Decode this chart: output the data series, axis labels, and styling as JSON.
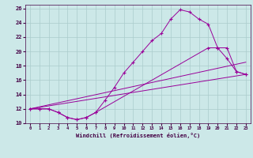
{
  "background_color": "#cce8e8",
  "grid_color": "#aacccc",
  "line_color": "#990099",
  "xlabel": "Windchill (Refroidissement éolien,°C)",
  "xlim": [
    -0.5,
    23.5
  ],
  "ylim": [
    10,
    26.5
  ],
  "xticks": [
    0,
    1,
    2,
    3,
    4,
    5,
    6,
    7,
    8,
    9,
    10,
    11,
    12,
    13,
    14,
    15,
    16,
    17,
    18,
    19,
    20,
    21,
    22,
    23
  ],
  "yticks": [
    10,
    12,
    14,
    16,
    18,
    20,
    22,
    24,
    26
  ],
  "line1_x": [
    0,
    1,
    2,
    3,
    4,
    5,
    6,
    7,
    8,
    9,
    10,
    11,
    12,
    13,
    14,
    15,
    16,
    17,
    18,
    19,
    20,
    21,
    22,
    23
  ],
  "line1_y": [
    12,
    12,
    12,
    11.5,
    10.8,
    10.5,
    10.8,
    11.5,
    13.2,
    15.0,
    17.0,
    18.5,
    20.0,
    21.5,
    22.5,
    24.5,
    25.8,
    25.5,
    24.5,
    23.8,
    20.5,
    20.5,
    17.2,
    16.8
  ],
  "line2_x": [
    0,
    1,
    2,
    3,
    4,
    5,
    6,
    7,
    19,
    20,
    21,
    22,
    23
  ],
  "line2_y": [
    12,
    12,
    12,
    11.5,
    10.8,
    10.5,
    10.8,
    11.5,
    20.5,
    20.5,
    19.0,
    17.2,
    16.8
  ],
  "line3_x": [
    0,
    23
  ],
  "line3_y": [
    12,
    18.5
  ],
  "line4_x": [
    0,
    23
  ],
  "line4_y": [
    12,
    16.8
  ]
}
